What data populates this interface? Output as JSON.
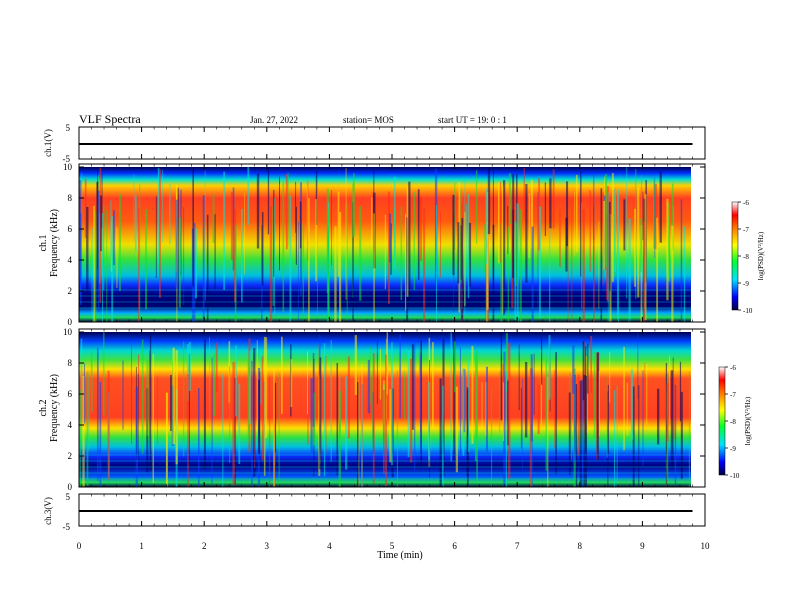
{
  "header": {
    "title": "VLF Spectra",
    "date": "Jan. 27, 2022",
    "station": "station= MOS",
    "start": "start  UT =   19: 0  : 1"
  },
  "chart_data": [
    {
      "type": "line",
      "panel": "ch1-voltage",
      "ylabel": "ch.1(V)",
      "ylim": [
        -5,
        5
      ],
      "yticks": [
        "5",
        "-5"
      ],
      "x": [
        0,
        9.8
      ],
      "y": [
        -0.3,
        -0.3
      ]
    },
    {
      "type": "heatmap",
      "panel": "ch1-spectrogram",
      "ylabel_top": "ch.1",
      "ylabel": "Frequency  (kHz)",
      "ylim": [
        0,
        10
      ],
      "yticks": [
        "0",
        "2",
        "4",
        "6",
        "8",
        "10"
      ],
      "data_xlim": [
        0,
        9.8
      ],
      "colorbar": {
        "label": "log(PSD)(V²/Hz)",
        "range": [
          -10,
          -6
        ],
        "ticks": [
          "-6",
          "-7",
          "-8",
          "-9",
          "-10"
        ]
      }
    },
    {
      "type": "heatmap",
      "panel": "ch2-spectrogram",
      "ylabel_top": "ch.2",
      "ylabel": "Frequency  (kHz)",
      "ylim": [
        0,
        10
      ],
      "yticks": [
        "0",
        "2",
        "4",
        "6",
        "8",
        "10"
      ],
      "data_xlim": [
        0,
        9.8
      ],
      "colorbar": {
        "label": "log(PSD)(V²/Hz)",
        "range": [
          -10,
          -6
        ],
        "ticks": [
          "-6",
          "-7",
          "-8",
          "-9",
          "-10"
        ]
      }
    },
    {
      "type": "line",
      "panel": "ch3-voltage",
      "ylabel": "ch.3(V)",
      "ylim": [
        -5,
        5
      ],
      "yticks": [
        "5",
        "-5"
      ],
      "x": [
        0,
        9.8
      ],
      "y": [
        -0.3,
        -0.3
      ]
    }
  ],
  "xaxis": {
    "label": "Time  (min)",
    "xlim": [
      0,
      10
    ],
    "ticks": [
      "0",
      "1",
      "2",
      "3",
      "4",
      "5",
      "6",
      "7",
      "8",
      "9",
      "10"
    ]
  },
  "colors": {
    "red": "#ff2a1c",
    "orange": "#ff9a00",
    "yellow": "#ffee00",
    "green": "#10e030",
    "cyan": "#00e8e0",
    "blue": "#0a3cff",
    "navy": "#000060"
  }
}
